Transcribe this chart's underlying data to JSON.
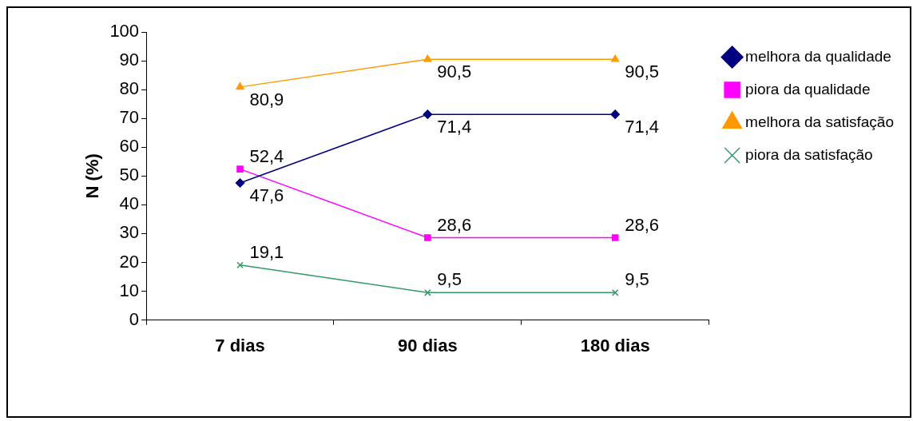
{
  "chart_data": {
    "type": "line",
    "ylabel": "N (%)",
    "categories": [
      "7 dias",
      "90 dias",
      "180 dias"
    ],
    "series": [
      {
        "name": "melhora da qualidade",
        "color": "#000080",
        "marker": "diamond",
        "values": [
          47.6,
          71.4,
          71.4
        ],
        "value_labels": [
          "47,6",
          "71,4",
          "71,4"
        ]
      },
      {
        "name": "piora da qualidade",
        "color": "#ff00ff",
        "marker": "square",
        "values": [
          52.4,
          28.6,
          28.6
        ],
        "value_labels": [
          "52,4",
          "28,6",
          "28,6"
        ]
      },
      {
        "name": "melhora da satisfação",
        "color": "#ff9900",
        "marker": "triangle",
        "values": [
          80.9,
          90.5,
          90.5
        ],
        "value_labels": [
          "80,9",
          "90,5",
          "90,5"
        ]
      },
      {
        "name": "piora da satisfação",
        "color": "#339966",
        "marker": "cross",
        "values": [
          19.1,
          9.5,
          9.5
        ],
        "value_labels": [
          "19,1",
          "9,5",
          "9,5"
        ]
      }
    ],
    "ylim": [
      0,
      100
    ],
    "yticks": [
      0,
      10,
      20,
      30,
      40,
      50,
      60,
      70,
      80,
      90,
      100
    ],
    "grid": false,
    "legend": "right",
    "line_style": "solid"
  }
}
